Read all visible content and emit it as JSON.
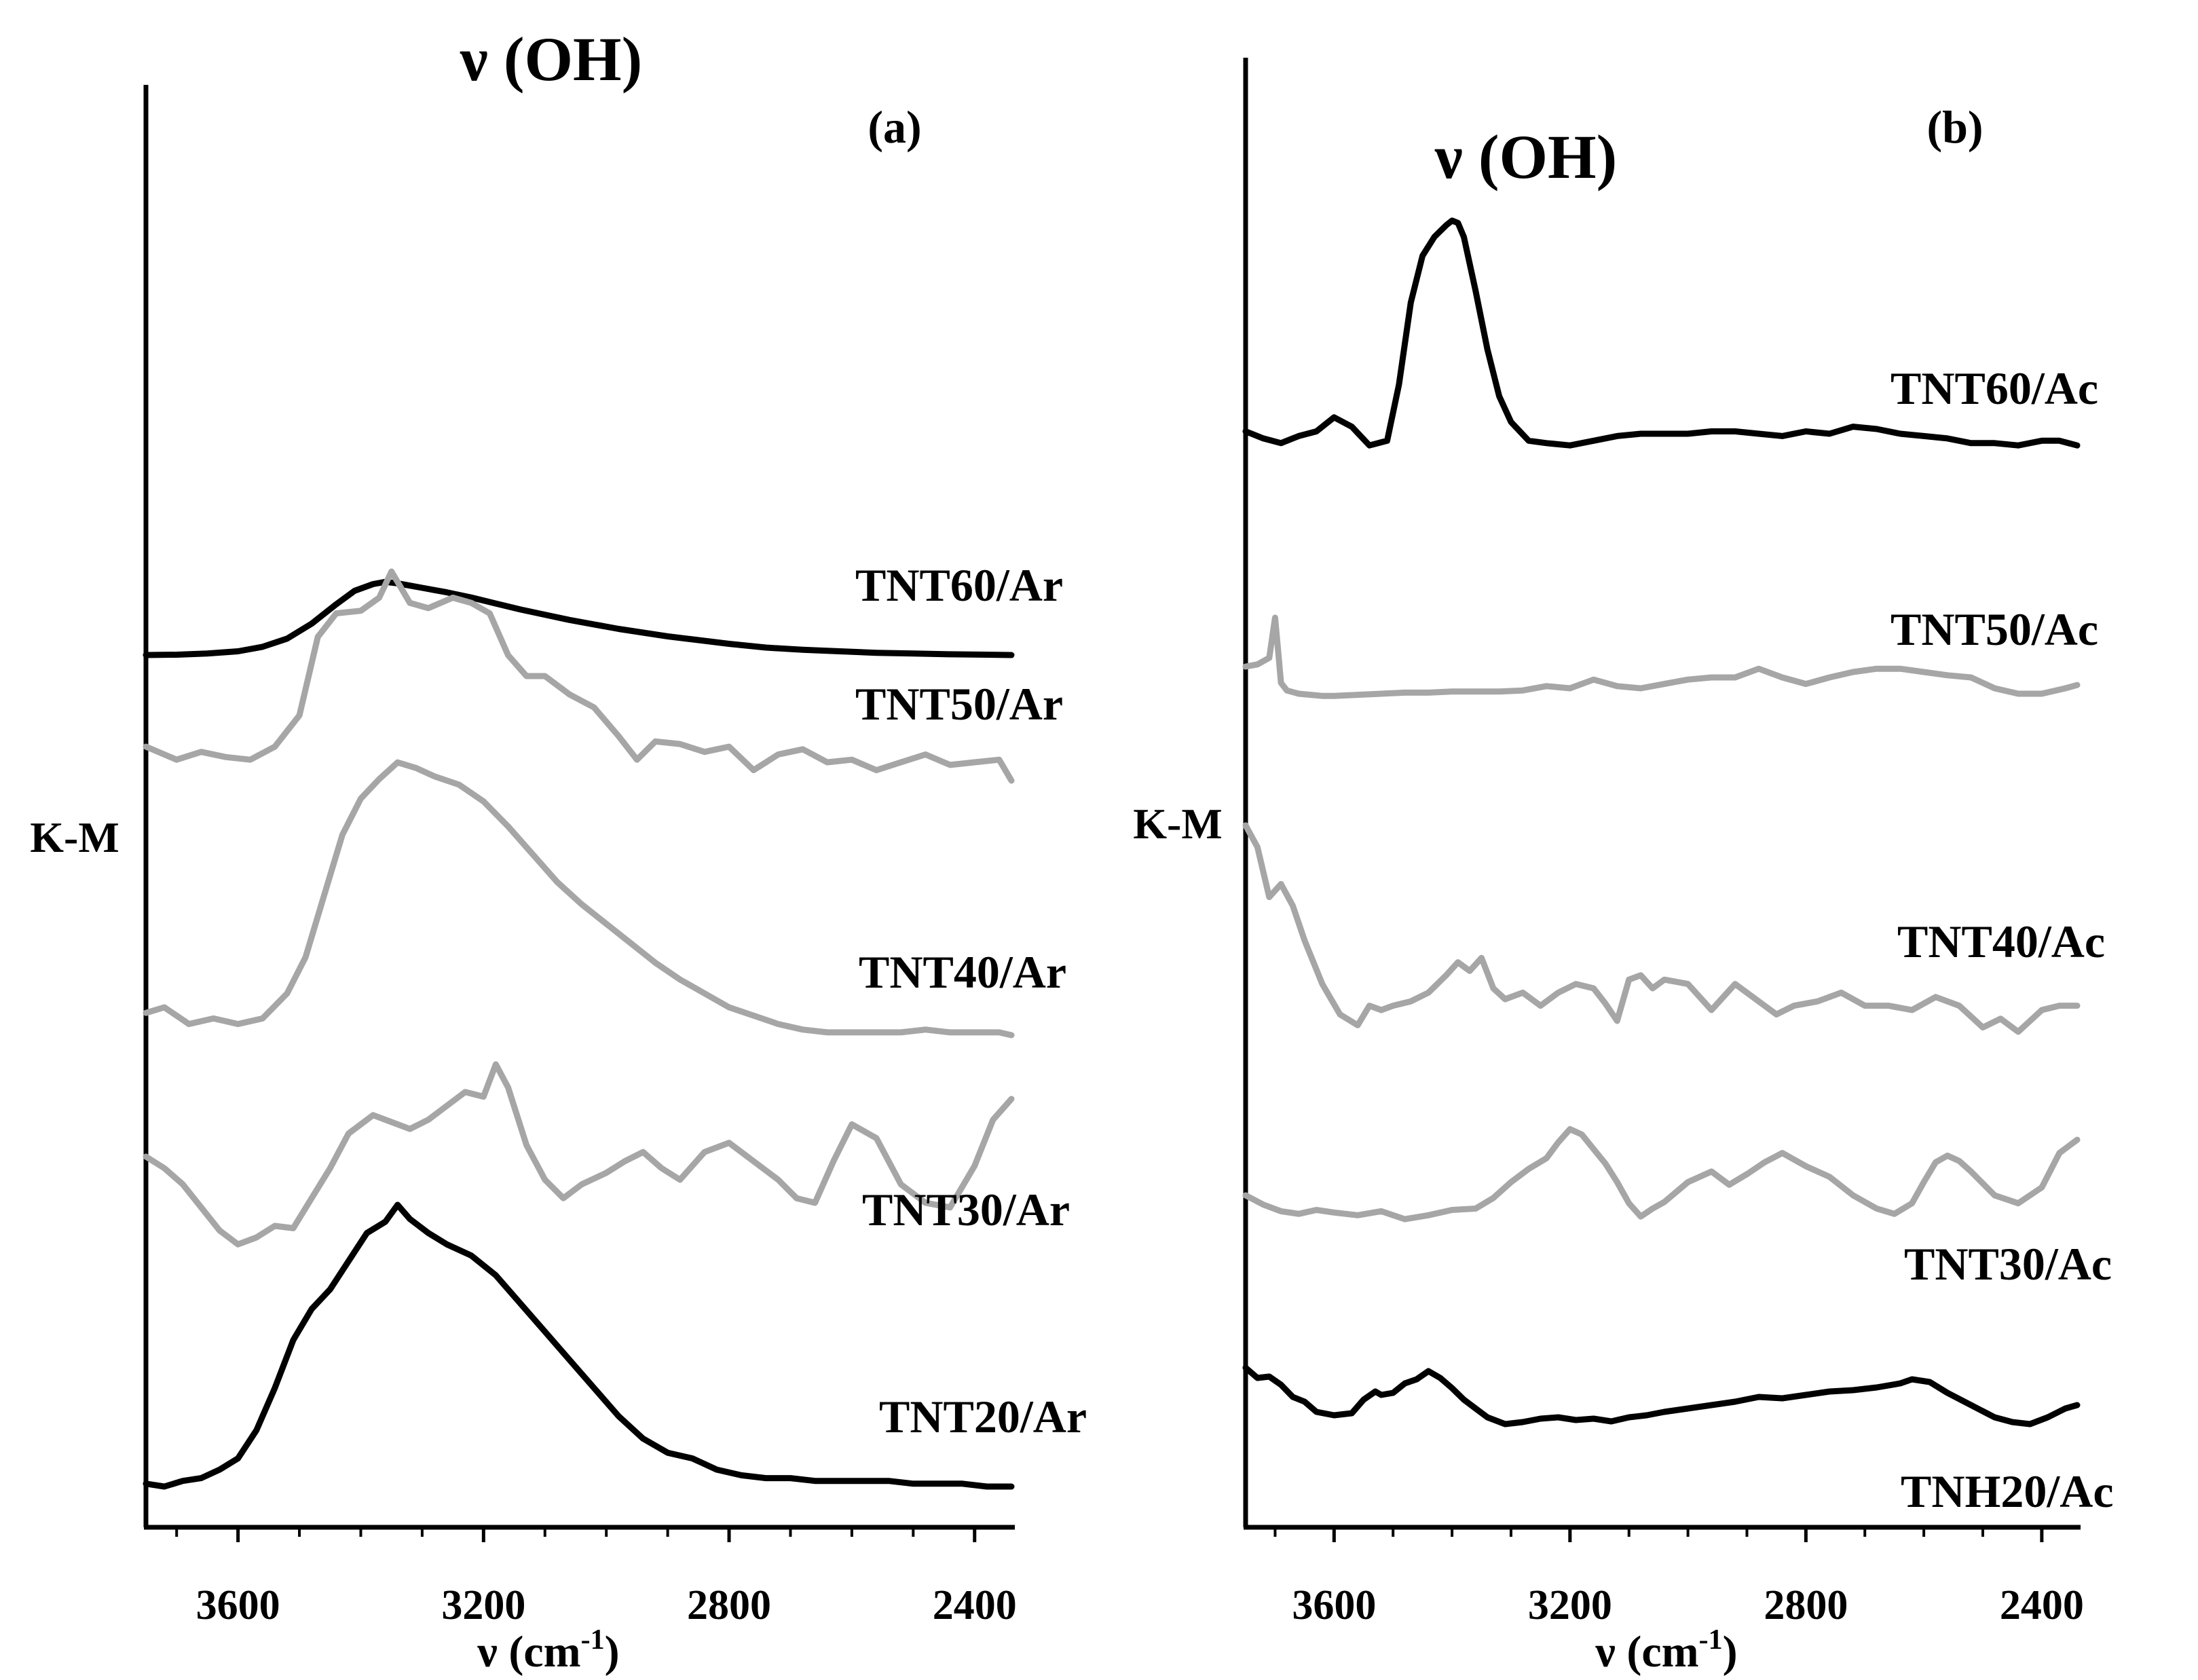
{
  "chart_data": [
    {
      "type": "line",
      "panel_label": "(a)",
      "peak_label": "ν (OH)",
      "ylabel": "K-M",
      "xlabel": "ν (cm",
      "xlabel_superscript": "-1",
      "xlabel_close": ")",
      "xlim": [
        3750,
        2340
      ],
      "x_ticks": [
        3600,
        3200,
        2800,
        2400
      ],
      "x_tick_labels": [
        "3600",
        "3200",
        "2800",
        "2400"
      ],
      "series": [
        {
          "name": "TNT60/Ar",
          "label": "TNT60/Ar",
          "color": "#000000",
          "x": [
            3750,
            3700,
            3650,
            3600,
            3560,
            3520,
            3480,
            3440,
            3410,
            3380,
            3360,
            3340,
            3320,
            3300,
            3260,
            3220,
            3180,
            3140,
            3100,
            3060,
            3020,
            2980,
            2940,
            2900,
            2860,
            2800,
            2740,
            2680,
            2620,
            2560,
            2500,
            2440,
            2380,
            2340
          ],
          "y": [
            0.0,
            0.005,
            0.02,
            0.05,
            0.11,
            0.22,
            0.42,
            0.68,
            0.86,
            0.95,
            0.98,
            0.96,
            0.93,
            0.9,
            0.84,
            0.77,
            0.69,
            0.61,
            0.54,
            0.47,
            0.41,
            0.35,
            0.3,
            0.25,
            0.21,
            0.15,
            0.1,
            0.07,
            0.05,
            0.03,
            0.02,
            0.01,
            0.005,
            0.0
          ]
        },
        {
          "name": "TNT50/Ar",
          "label": "TNT50/Ar",
          "color": "#a6a6a6",
          "x": [
            3750,
            3700,
            3660,
            3620,
            3580,
            3540,
            3500,
            3470,
            3440,
            3400,
            3370,
            3350,
            3320,
            3290,
            3250,
            3220,
            3190,
            3160,
            3130,
            3100,
            3060,
            3020,
            2980,
            2950,
            2920,
            2880,
            2840,
            2800,
            2760,
            2720,
            2680,
            2640,
            2600,
            2560,
            2520,
            2480,
            2440,
            2400,
            2360,
            2340
          ],
          "y": [
            0.13,
            0.08,
            0.11,
            0.09,
            0.08,
            0.13,
            0.25,
            0.55,
            0.64,
            0.65,
            0.7,
            0.8,
            0.68,
            0.66,
            0.7,
            0.68,
            0.64,
            0.48,
            0.4,
            0.4,
            0.33,
            0.28,
            0.17,
            0.08,
            0.15,
            0.14,
            0.11,
            0.13,
            0.04,
            0.1,
            0.12,
            0.07,
            0.08,
            0.04,
            0.07,
            0.1,
            0.06,
            0.07,
            0.08,
            0.0
          ]
        },
        {
          "name": "TNT40/Ar",
          "label": "TNT40/Ar",
          "color": "#a6a6a6",
          "x": [
            3750,
            3720,
            3680,
            3640,
            3600,
            3560,
            3520,
            3490,
            3460,
            3430,
            3400,
            3370,
            3340,
            3310,
            3280,
            3240,
            3200,
            3160,
            3120,
            3080,
            3040,
            3000,
            2960,
            2920,
            2880,
            2840,
            2800,
            2760,
            2720,
            2680,
            2640,
            2600,
            2560,
            2520,
            2480,
            2440,
            2400,
            2360,
            2340
          ],
          "y": [
            0.08,
            0.1,
            0.04,
            0.06,
            0.04,
            0.06,
            0.15,
            0.28,
            0.5,
            0.72,
            0.85,
            0.92,
            0.98,
            0.96,
            0.93,
            0.9,
            0.84,
            0.75,
            0.65,
            0.55,
            0.47,
            0.4,
            0.33,
            0.26,
            0.2,
            0.15,
            0.1,
            0.07,
            0.04,
            0.02,
            0.01,
            0.01,
            0.01,
            0.01,
            0.02,
            0.01,
            0.01,
            0.01,
            0.0
          ]
        },
        {
          "name": "TNT30/Ar",
          "label": "TNT30/Ar",
          "color": "#a6a6a6",
          "x": [
            3750,
            3720,
            3690,
            3660,
            3630,
            3600,
            3570,
            3540,
            3510,
            3480,
            3450,
            3420,
            3380,
            3350,
            3320,
            3290,
            3260,
            3230,
            3200,
            3180,
            3160,
            3130,
            3100,
            3070,
            3040,
            3000,
            2970,
            2940,
            2910,
            2880,
            2840,
            2800,
            2760,
            2720,
            2690,
            2660,
            2630,
            2600,
            2560,
            2520,
            2480,
            2440,
            2400,
            2370,
            2340
          ],
          "y": [
            0.4,
            0.35,
            0.28,
            0.18,
            0.08,
            0.02,
            0.05,
            0.1,
            0.09,
            0.22,
            0.35,
            0.5,
            0.58,
            0.55,
            0.52,
            0.56,
            0.62,
            0.68,
            0.66,
            0.8,
            0.7,
            0.45,
            0.3,
            0.22,
            0.28,
            0.33,
            0.38,
            0.42,
            0.35,
            0.3,
            0.42,
            0.46,
            0.38,
            0.3,
            0.22,
            0.2,
            0.38,
            0.54,
            0.48,
            0.28,
            0.2,
            0.18,
            0.36,
            0.56,
            0.65
          ]
        },
        {
          "name": "TNT20/Ar",
          "label": "TNT20/Ar",
          "color": "#000000",
          "x": [
            3750,
            3720,
            3690,
            3660,
            3630,
            3600,
            3570,
            3540,
            3510,
            3480,
            3450,
            3420,
            3390,
            3360,
            3340,
            3320,
            3290,
            3260,
            3220,
            3180,
            3140,
            3100,
            3060,
            3020,
            2980,
            2940,
            2900,
            2860,
            2820,
            2780,
            2740,
            2700,
            2660,
            2620,
            2580,
            2540,
            2500,
            2460,
            2420,
            2380,
            2340
          ],
          "y": [
            0.01,
            0.0,
            0.02,
            0.03,
            0.06,
            0.1,
            0.2,
            0.35,
            0.52,
            0.63,
            0.7,
            0.8,
            0.9,
            0.94,
            1.0,
            0.95,
            0.9,
            0.86,
            0.82,
            0.75,
            0.65,
            0.55,
            0.45,
            0.35,
            0.25,
            0.17,
            0.12,
            0.1,
            0.06,
            0.04,
            0.03,
            0.03,
            0.02,
            0.02,
            0.02,
            0.02,
            0.01,
            0.01,
            0.01,
            0.0,
            0.0
          ]
        }
      ]
    },
    {
      "type": "line",
      "panel_label": "(b)",
      "peak_label": "ν (OH)",
      "ylabel": "K-M",
      "xlabel": "ν (cm",
      "xlabel_superscript": "-1",
      "xlabel_close": ")",
      "xlim": [
        3750,
        2340
      ],
      "x_ticks": [
        3600,
        3200,
        2800,
        2400
      ],
      "x_tick_labels": [
        "3600",
        "3200",
        "2800",
        "2400"
      ],
      "series": [
        {
          "name": "TNT60/Ac",
          "label": "TNT60/Ac",
          "color": "#000000",
          "x": [
            3750,
            3720,
            3690,
            3660,
            3630,
            3600,
            3570,
            3540,
            3510,
            3490,
            3470,
            3450,
            3430,
            3410,
            3400,
            3390,
            3380,
            3360,
            3340,
            3320,
            3300,
            3270,
            3240,
            3200,
            3160,
            3120,
            3080,
            3040,
            3000,
            2960,
            2920,
            2880,
            2840,
            2800,
            2760,
            2720,
            2680,
            2640,
            2600,
            2560,
            2520,
            2480,
            2440,
            2400,
            2370,
            2340
          ],
          "y": [
            0.1,
            0.07,
            0.05,
            0.08,
            0.1,
            0.16,
            0.12,
            0.04,
            0.06,
            0.3,
            0.65,
            0.85,
            0.93,
            0.98,
            1.0,
            0.99,
            0.93,
            0.7,
            0.45,
            0.25,
            0.14,
            0.06,
            0.05,
            0.04,
            0.06,
            0.08,
            0.09,
            0.09,
            0.09,
            0.1,
            0.1,
            0.09,
            0.08,
            0.1,
            0.09,
            0.12,
            0.11,
            0.09,
            0.08,
            0.07,
            0.05,
            0.05,
            0.04,
            0.06,
            0.06,
            0.04
          ]
        },
        {
          "name": "TNT50/Ac",
          "label": "TNT50/Ac",
          "color": "#a6a6a6",
          "x": [
            3750,
            3730,
            3710,
            3700,
            3695,
            3690,
            3680,
            3660,
            3640,
            3620,
            3600,
            3560,
            3520,
            3480,
            3440,
            3400,
            3360,
            3320,
            3280,
            3240,
            3200,
            3160,
            3120,
            3080,
            3040,
            3000,
            2960,
            2920,
            2880,
            2840,
            2800,
            2760,
            2720,
            2680,
            2640,
            2600,
            2560,
            2520,
            2480,
            2440,
            2400,
            2360,
            2340
          ],
          "y": [
            0.3,
            0.32,
            0.38,
            0.75,
            0.45,
            0.15,
            0.08,
            0.05,
            0.04,
            0.03,
            0.03,
            0.04,
            0.05,
            0.06,
            0.06,
            0.07,
            0.07,
            0.07,
            0.08,
            0.12,
            0.1,
            0.18,
            0.12,
            0.1,
            0.14,
            0.18,
            0.2,
            0.2,
            0.28,
            0.2,
            0.14,
            0.2,
            0.25,
            0.28,
            0.28,
            0.25,
            0.22,
            0.2,
            0.1,
            0.05,
            0.05,
            0.1,
            0.13
          ]
        },
        {
          "name": "TNT40/Ac",
          "label": "TNT40/Ac",
          "color": "#a6a6a6",
          "x": [
            3750,
            3730,
            3710,
            3690,
            3670,
            3650,
            3620,
            3590,
            3560,
            3540,
            3520,
            3500,
            3470,
            3440,
            3410,
            3390,
            3370,
            3350,
            3330,
            3310,
            3280,
            3250,
            3220,
            3190,
            3160,
            3140,
            3120,
            3100,
            3080,
            3060,
            3040,
            3000,
            2960,
            2920,
            2880,
            2850,
            2820,
            2780,
            2740,
            2700,
            2660,
            2620,
            2580,
            2540,
            2500,
            2470,
            2440,
            2400,
            2370,
            2340
          ],
          "y": [
            0.95,
            0.85,
            0.62,
            0.68,
            0.58,
            0.42,
            0.22,
            0.08,
            0.03,
            0.12,
            0.1,
            0.12,
            0.14,
            0.18,
            0.26,
            0.32,
            0.28,
            0.34,
            0.2,
            0.15,
            0.18,
            0.12,
            0.18,
            0.22,
            0.2,
            0.13,
            0.05,
            0.24,
            0.26,
            0.2,
            0.24,
            0.22,
            0.1,
            0.22,
            0.14,
            0.08,
            0.12,
            0.14,
            0.18,
            0.12,
            0.12,
            0.1,
            0.16,
            0.12,
            0.02,
            0.06,
            0.0,
            0.1,
            0.12,
            0.12
          ]
        },
        {
          "name": "TNT30/Ac",
          "label": "TNT30/Ac",
          "color": "#a6a6a6",
          "x": [
            3750,
            3720,
            3690,
            3660,
            3630,
            3600,
            3560,
            3520,
            3480,
            3440,
            3400,
            3360,
            3330,
            3300,
            3270,
            3240,
            3220,
            3200,
            3180,
            3160,
            3140,
            3120,
            3100,
            3080,
            3060,
            3040,
            3000,
            2960,
            2930,
            2900,
            2870,
            2840,
            2800,
            2760,
            2720,
            2680,
            2650,
            2620,
            2600,
            2580,
            2560,
            2540,
            2520,
            2480,
            2440,
            2400,
            2370,
            2340
          ],
          "y": [
            0.2,
            0.13,
            0.08,
            0.06,
            0.09,
            0.07,
            0.05,
            0.08,
            0.02,
            0.05,
            0.09,
            0.1,
            0.18,
            0.3,
            0.4,
            0.48,
            0.6,
            0.7,
            0.66,
            0.55,
            0.44,
            0.3,
            0.14,
            0.04,
            0.1,
            0.15,
            0.3,
            0.38,
            0.28,
            0.36,
            0.45,
            0.52,
            0.42,
            0.34,
            0.2,
            0.1,
            0.06,
            0.14,
            0.3,
            0.45,
            0.5,
            0.46,
            0.38,
            0.2,
            0.14,
            0.26,
            0.52,
            0.62
          ]
        },
        {
          "name": "TNH20/Ac",
          "label": "TNH20/Ac",
          "color": "#000000",
          "x": [
            3750,
            3730,
            3710,
            3690,
            3670,
            3650,
            3630,
            3600,
            3570,
            3550,
            3530,
            3520,
            3500,
            3480,
            3460,
            3440,
            3420,
            3400,
            3380,
            3360,
            3340,
            3310,
            3280,
            3250,
            3220,
            3190,
            3160,
            3130,
            3100,
            3070,
            3040,
            3000,
            2960,
            2920,
            2880,
            2840,
            2800,
            2760,
            2720,
            2680,
            2640,
            2620,
            2590,
            2560,
            2520,
            2480,
            2450,
            2420,
            2390,
            2360,
            2340
          ],
          "y": [
            0.85,
            0.7,
            0.72,
            0.6,
            0.42,
            0.35,
            0.2,
            0.15,
            0.18,
            0.38,
            0.5,
            0.45,
            0.48,
            0.62,
            0.68,
            0.8,
            0.7,
            0.55,
            0.38,
            0.25,
            0.12,
            0.02,
            0.05,
            0.1,
            0.12,
            0.08,
            0.1,
            0.06,
            0.12,
            0.15,
            0.2,
            0.25,
            0.3,
            0.35,
            0.42,
            0.4,
            0.45,
            0.5,
            0.52,
            0.56,
            0.62,
            0.68,
            0.64,
            0.48,
            0.3,
            0.12,
            0.05,
            0.02,
            0.12,
            0.25,
            0.3
          ]
        }
      ]
    }
  ]
}
